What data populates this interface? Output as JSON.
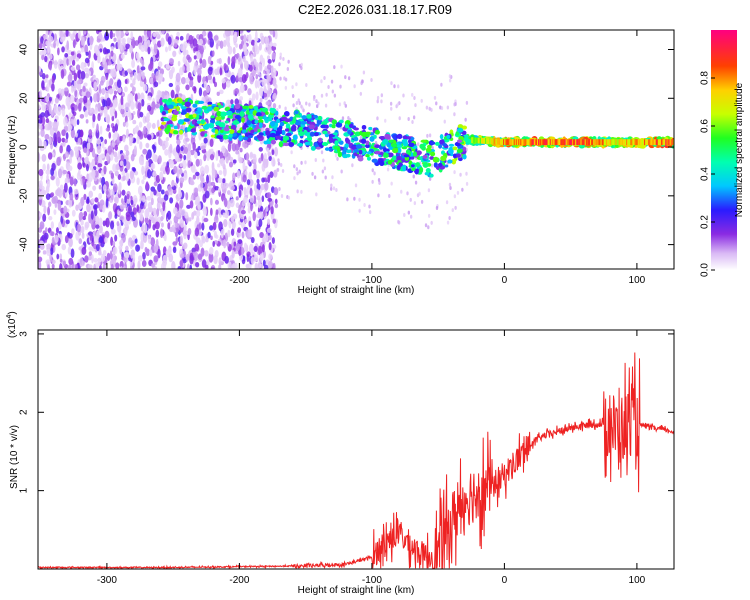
{
  "title": "C2E2.2026.031.18.17.R09",
  "colors": {
    "series": "#ee2222",
    "axis": "#000000"
  },
  "chart_data": [
    {
      "type": "heatmap",
      "xlabel": "Height of straight line (km)",
      "ylabel": "Frequency (Hz)",
      "xlim": [
        -352,
        128
      ],
      "ylim": [
        -50,
        48
      ],
      "xticks": [
        -300,
        -200,
        -100,
        0,
        100
      ],
      "yticks": [
        -40,
        -20,
        0,
        20,
        40
      ],
      "colorbar": {
        "label": "Normalized spectral amplitude",
        "range": [
          0.0,
          1.0
        ],
        "ticks": [
          0.0,
          0.2,
          0.4,
          0.6,
          0.8
        ],
        "tick_labels": [
          "0.0",
          "0.2",
          "0.4",
          "0.6",
          "0.8"
        ]
      },
      "ridge": [
        {
          "x": -200,
          "freq": 10,
          "amp": 0.5
        },
        {
          "x": -150,
          "freq": 7,
          "amp": 0.4
        },
        {
          "x": -110,
          "freq": 2,
          "amp": 0.45
        },
        {
          "x": -80,
          "freq": -2,
          "amp": 0.45
        },
        {
          "x": -55,
          "freq": -5,
          "amp": 0.5
        },
        {
          "x": -30,
          "freq": 3,
          "amp": 0.55
        },
        {
          "x": 0,
          "freq": 2,
          "amp": 0.8
        },
        {
          "x": 50,
          "freq": 2,
          "amp": 0.85
        },
        {
          "x": 90,
          "freq": 2,
          "amp": 0.7
        },
        {
          "x": 128,
          "freq": 2,
          "amp": 0.85
        }
      ]
    },
    {
      "type": "line",
      "xlabel": "Height of straight line (km)",
      "ylabel": "SNR (10 * v/v)",
      "yscale_note": "(x10",
      "yscale_exp": "4",
      "yscale_close": ")",
      "xlim": [
        -352,
        128
      ],
      "ylim": [
        0,
        3.05
      ],
      "xticks": [
        -300,
        -200,
        -100,
        0,
        100
      ],
      "yticks": [
        1,
        2,
        3
      ],
      "series": [
        {
          "x": [
            -352,
            -300,
            -250,
            -200,
            -150,
            -120,
            -100,
            -90,
            -80,
            -70,
            -60,
            -50,
            -40,
            -30,
            -20,
            -10,
            0,
            10,
            20,
            30,
            40,
            50,
            60,
            70,
            80,
            85,
            90,
            95,
            100,
            110,
            120,
            128
          ],
          "y": [
            0.02,
            0.02,
            0.02,
            0.03,
            0.04,
            0.06,
            0.15,
            0.35,
            0.45,
            0.3,
            0.15,
            0.2,
            0.6,
            0.9,
            1.0,
            1.05,
            1.2,
            1.4,
            1.6,
            1.7,
            1.75,
            1.8,
            1.83,
            1.85,
            1.85,
            1.75,
            1.8,
            1.9,
            1.85,
            1.8,
            1.78,
            1.75
          ]
        }
      ]
    }
  ]
}
